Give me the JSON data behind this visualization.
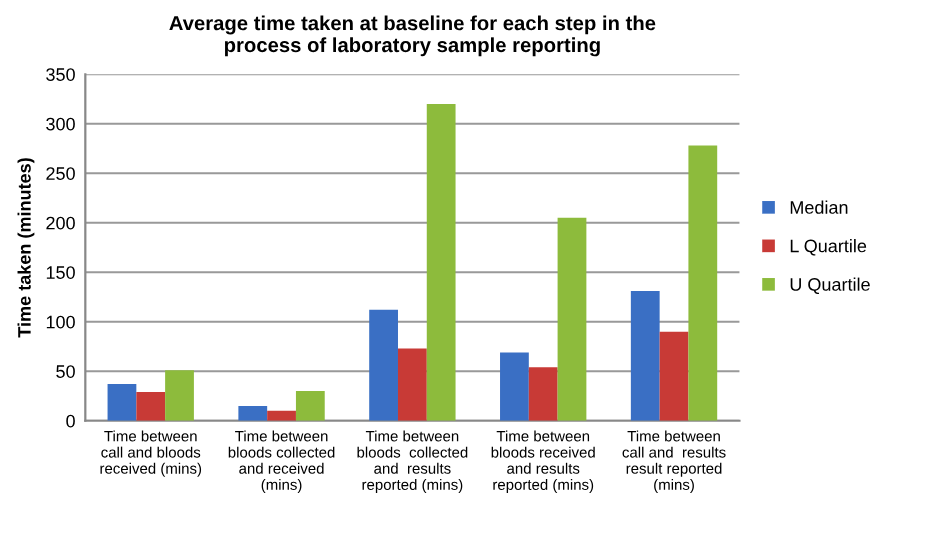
{
  "chart_data": {
    "type": "bar",
    "title": "Average time taken at baseline for each step in the\nprocess of laboratory sample reporting",
    "ylabel": "Time taken (minutes)",
    "categories": [
      "Time between\ncall and bloods\nreceived (mins)",
      "Time between\nbloods collected\nand received\n(mins)",
      "Time between\nbloods  collected\nand  results\nreported (mins)",
      "Time between\nbloods received\nand results\nreported (mins)",
      "Time between\ncall and  results\nresult reported\n(mins)"
    ],
    "series": [
      {
        "name": "Median",
        "color": "#3a6fc4",
        "values": [
          37,
          15,
          112,
          69,
          131
        ]
      },
      {
        "name": "L Quartile",
        "color": "#c83a36",
        "values": [
          29,
          10,
          73,
          54,
          90
        ]
      },
      {
        "name": "U Quartile",
        "color": "#8dbb3c",
        "values": [
          51,
          30,
          320,
          205,
          278
        ]
      }
    ],
    "ylim": [
      0,
      350
    ],
    "yticks": [
      0,
      50,
      100,
      150,
      200,
      250,
      300,
      350
    ],
    "grid": "y",
    "legend": "right"
  }
}
